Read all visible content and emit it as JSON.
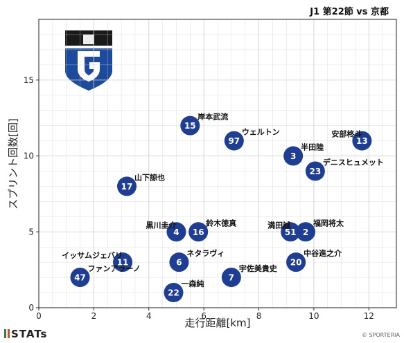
{
  "header": {
    "title": "J1 第22節 vs 京都"
  },
  "footer": {
    "brand": "STATs",
    "brand_colors": [
      "#3a7d3a",
      "#d44a2a"
    ],
    "copyright": "© SPORTERIA"
  },
  "team_emblem": {
    "name": "gamba-emblem",
    "colors": [
      "#1a1a1a",
      "#1c4a9c"
    ]
  },
  "colors": {
    "marker": "#1d3e94",
    "marker_text": "#ffffff",
    "grid": "#d0d0d0"
  },
  "chart_data": {
    "type": "scatter",
    "title": "",
    "xlabel": "走行距離[km]",
    "ylabel": "スプリント回数[回]",
    "xlim": [
      0,
      13
    ],
    "ylim": [
      0,
      19
    ],
    "xticks": [
      0,
      2,
      4,
      6,
      8,
      10,
      12
    ],
    "yticks": [
      0,
      5,
      10,
      15
    ],
    "grid": true,
    "points": [
      {
        "number": "15",
        "name": "岸本武流",
        "x": 5.5,
        "y": 12
      },
      {
        "number": "97",
        "name": "ウェルトン",
        "x": 7.1,
        "y": 11
      },
      {
        "number": "3",
        "name": "半田陸",
        "x": 9.25,
        "y": 10
      },
      {
        "number": "13",
        "name": "安部柊斗",
        "x": 11.75,
        "y": 11
      },
      {
        "number": "23",
        "name": "デニスヒュメット",
        "x": 10.05,
        "y": 9
      },
      {
        "number": "17",
        "name": "山下諒也",
        "x": 3.2,
        "y": 8
      },
      {
        "number": "4",
        "name": "黒川圭介",
        "x": 5.0,
        "y": 5
      },
      {
        "number": "16",
        "name": "鈴木徳真",
        "x": 5.8,
        "y": 5
      },
      {
        "number": "51",
        "name": "満田誠",
        "x": 9.15,
        "y": 5
      },
      {
        "number": "2",
        "name": "福岡将太",
        "x": 9.7,
        "y": 5
      },
      {
        "number": "11",
        "name": "イッサムジェバリ",
        "x": 3.05,
        "y": 3
      },
      {
        "number": "6",
        "name": "ネタラヴィ",
        "x": 5.1,
        "y": 3
      },
      {
        "number": "20",
        "name": "中谷進之介",
        "x": 9.35,
        "y": 3
      },
      {
        "number": "47",
        "name": "ファンアラーノ",
        "x": 1.5,
        "y": 2
      },
      {
        "number": "7",
        "name": "宇佐美貴史",
        "x": 7.0,
        "y": 2
      },
      {
        "number": "22",
        "name": "一森純",
        "x": 4.9,
        "y": 1
      }
    ]
  }
}
